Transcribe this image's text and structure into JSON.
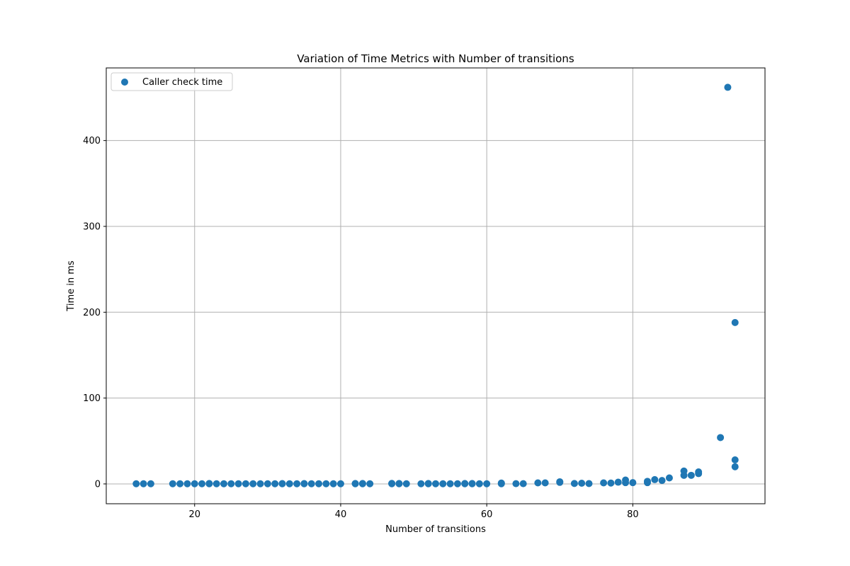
{
  "chart_data": {
    "type": "scatter",
    "title": "Variation of Time Metrics with Number of transitions",
    "xlabel": "Number of transitions",
    "ylabel": "Time in ms",
    "xlim": [
      7.9,
      98.1
    ],
    "ylim": [
      -23.1,
      484.6
    ],
    "xticks": [
      20,
      40,
      60,
      80
    ],
    "yticks": [
      0,
      100,
      200,
      300,
      400
    ],
    "grid": true,
    "legend_position": "top-left",
    "series": [
      {
        "name": "Caller check time",
        "color": "#1f77b4",
        "points": [
          [
            12,
            0.2
          ],
          [
            13,
            0.2
          ],
          [
            14,
            0.2
          ],
          [
            17,
            0.2
          ],
          [
            18,
            0.2
          ],
          [
            19,
            0.2
          ],
          [
            20,
            0.2
          ],
          [
            21,
            0.2
          ],
          [
            22,
            0.2
          ],
          [
            22,
            0.5
          ],
          [
            23,
            0.2
          ],
          [
            24,
            0.2
          ],
          [
            25,
            0.2
          ],
          [
            26,
            0.2
          ],
          [
            27,
            0.2
          ],
          [
            28,
            0.2
          ],
          [
            29,
            0.2
          ],
          [
            30,
            0.2
          ],
          [
            31,
            0.2
          ],
          [
            32,
            0.2
          ],
          [
            32,
            0.4
          ],
          [
            33,
            0.2
          ],
          [
            34,
            0.2
          ],
          [
            35,
            0.2
          ],
          [
            35,
            0.4
          ],
          [
            36,
            0.2
          ],
          [
            37,
            0.2
          ],
          [
            38,
            0.2
          ],
          [
            39,
            0.2
          ],
          [
            40,
            0.2
          ],
          [
            42,
            0.2
          ],
          [
            42,
            0.5
          ],
          [
            43,
            0.2
          ],
          [
            43,
            0.5
          ],
          [
            44,
            0.2
          ],
          [
            47,
            0.2
          ],
          [
            47,
            0.6
          ],
          [
            48,
            0.2
          ],
          [
            48,
            0.5
          ],
          [
            49,
            0.2
          ],
          [
            51,
            0.2
          ],
          [
            52,
            0.2
          ],
          [
            52,
            0.5
          ],
          [
            53,
            0.2
          ],
          [
            54,
            0.2
          ],
          [
            55,
            0.2
          ],
          [
            56,
            0.2
          ],
          [
            57,
            0.2
          ],
          [
            57,
            0.5
          ],
          [
            58,
            0.2
          ],
          [
            58,
            0.5
          ],
          [
            59,
            0.2
          ],
          [
            60,
            0.2
          ],
          [
            62,
            0.2
          ],
          [
            62,
            1.0
          ],
          [
            64,
            0.3
          ],
          [
            65,
            0.3
          ],
          [
            67,
            1.2
          ],
          [
            68,
            1.2
          ],
          [
            70,
            1.8
          ],
          [
            70,
            2.5
          ],
          [
            72,
            0.5
          ],
          [
            73,
            0.8
          ],
          [
            74,
            0.4
          ],
          [
            76,
            1.2
          ],
          [
            77,
            1.0
          ],
          [
            78,
            2.0
          ],
          [
            79,
            1.5
          ],
          [
            79,
            4.5
          ],
          [
            80,
            1.5
          ],
          [
            82,
            1.5
          ],
          [
            82,
            3.0
          ],
          [
            83,
            5.0
          ],
          [
            84,
            4.0
          ],
          [
            85,
            7.0
          ],
          [
            87,
            10.0
          ],
          [
            87,
            15.0
          ],
          [
            88,
            10.0
          ],
          [
            89,
            12.0
          ],
          [
            89,
            14.0
          ],
          [
            92,
            54.0
          ],
          [
            93,
            462.0
          ],
          [
            94,
            188.0
          ],
          [
            94,
            28.0
          ],
          [
            94,
            20.0
          ]
        ]
      }
    ]
  }
}
